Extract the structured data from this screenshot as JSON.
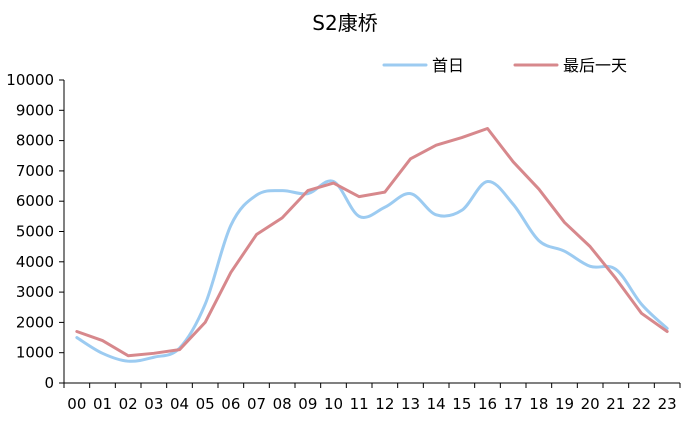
{
  "chart_data": {
    "type": "line",
    "title": "S2康桥",
    "xlabel": "",
    "ylabel": "",
    "categories": [
      "00",
      "01",
      "02",
      "03",
      "04",
      "05",
      "06",
      "07",
      "08",
      "09",
      "10",
      "11",
      "12",
      "13",
      "14",
      "15",
      "16",
      "17",
      "18",
      "19",
      "20",
      "21",
      "22",
      "23"
    ],
    "ylim": [
      0,
      10000
    ],
    "yticks": [
      0,
      1000,
      2000,
      3000,
      4000,
      5000,
      6000,
      7000,
      8000,
      9000,
      10000
    ],
    "grid": false,
    "legend_position": "top-right",
    "series": [
      {
        "name": "首日",
        "color": "#9ccbf1",
        "smooth": true,
        "values": [
          1500,
          980,
          720,
          850,
          1150,
          2600,
          5200,
          6200,
          6350,
          6250,
          6650,
          5500,
          5800,
          6250,
          5550,
          5700,
          6650,
          5900,
          4700,
          4350,
          3850,
          3750,
          2600,
          1800
        ]
      },
      {
        "name": "最后一天",
        "color": "#d7888c",
        "smooth": false,
        "values": [
          1700,
          1400,
          900,
          980,
          1100,
          2000,
          3650,
          4900,
          5450,
          6350,
          6600,
          6150,
          6300,
          7400,
          7850,
          8100,
          8400,
          7300,
          6400,
          5300,
          4500,
          3450,
          2300,
          1700
        ]
      }
    ]
  }
}
